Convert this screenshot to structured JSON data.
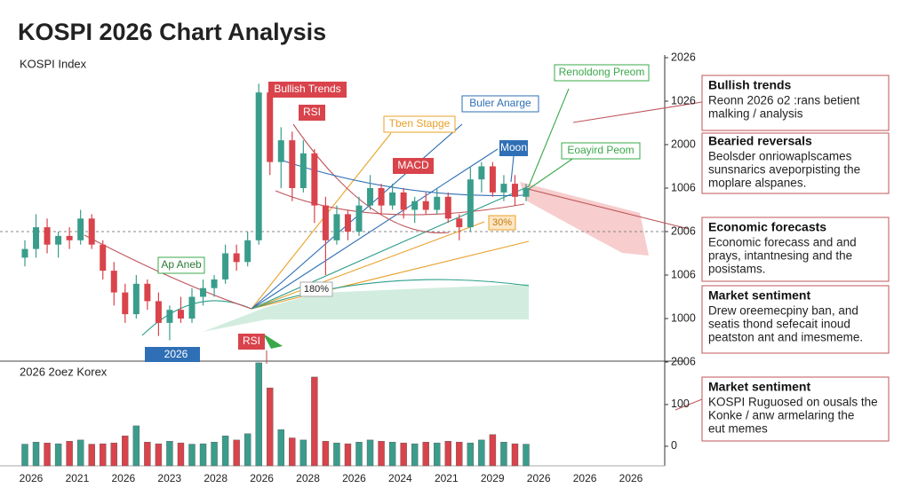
{
  "chart_data": {
    "type": "candlestick",
    "title": "KOSPI 2026 Chart Analysis",
    "price_label": "KOSPI Index",
    "volume_label": "2026 2oez Korex",
    "up_color": "#3a9d8c",
    "down_color": "#d9434b",
    "ylim": [
      0,
      7
    ],
    "yticks": [
      {
        "value": 0,
        "label": "2006"
      },
      {
        "value": 1,
        "label": "1000"
      },
      {
        "value": 2,
        "label": "1006"
      },
      {
        "value": 3,
        "label": "2006"
      },
      {
        "value": 4,
        "label": "1006"
      },
      {
        "value": 5,
        "label": "2000"
      },
      {
        "value": 6,
        "label": "1026"
      },
      {
        "value": 7,
        "label": "2026"
      }
    ],
    "volume_ylim": [
      -47,
      202
    ],
    "volume_yticks": [
      0,
      100
    ],
    "categories": [
      "2026",
      "2021",
      "2026",
      "2023",
      "2028",
      "2026",
      "2028",
      "2026",
      "2024",
      "2021",
      "2029",
      "2026",
      "2026",
      "2026"
    ],
    "candles": [
      [
        2.4,
        2.8,
        2.2,
        2.6
      ],
      [
        2.6,
        3.4,
        2.4,
        3.1
      ],
      [
        3.1,
        3.3,
        2.5,
        2.7
      ],
      [
        2.7,
        3.0,
        2.4,
        2.9
      ],
      [
        2.9,
        3.1,
        2.6,
        2.8
      ],
      [
        2.8,
        3.5,
        2.7,
        3.3
      ],
      [
        3.3,
        3.4,
        2.6,
        2.7
      ],
      [
        2.7,
        2.8,
        1.9,
        2.1
      ],
      [
        2.1,
        2.3,
        1.3,
        1.6
      ],
      [
        1.6,
        1.8,
        0.9,
        1.1
      ],
      [
        1.1,
        2.0,
        1.0,
        1.8
      ],
      [
        1.8,
        1.9,
        1.2,
        1.4
      ],
      [
        1.4,
        1.6,
        0.6,
        0.9
      ],
      [
        0.9,
        1.3,
        0.5,
        1.2
      ],
      [
        1.2,
        1.5,
        0.9,
        1.0
      ],
      [
        1.0,
        1.7,
        0.9,
        1.5
      ],
      [
        1.5,
        1.9,
        1.3,
        1.7
      ],
      [
        1.7,
        2.0,
        1.5,
        1.9
      ],
      [
        1.9,
        2.7,
        1.8,
        2.5
      ],
      [
        2.5,
        2.7,
        2.1,
        2.3
      ],
      [
        2.3,
        3.0,
        2.2,
        2.8
      ],
      [
        2.8,
        6.4,
        2.7,
        6.2
      ],
      [
        6.2,
        6.4,
        4.3,
        4.6
      ],
      [
        4.6,
        5.4,
        4.0,
        5.1
      ],
      [
        5.1,
        5.3,
        3.7,
        4.0
      ],
      [
        4.0,
        5.1,
        3.9,
        4.8
      ],
      [
        4.8,
        4.9,
        3.2,
        3.6
      ],
      [
        3.6,
        3.8,
        2.0,
        2.8
      ],
      [
        2.8,
        3.6,
        2.7,
        3.4
      ],
      [
        3.4,
        3.5,
        2.8,
        3.0
      ],
      [
        3.0,
        3.8,
        2.9,
        3.6
      ],
      [
        3.6,
        4.3,
        3.5,
        4.0
      ],
      [
        4.0,
        4.1,
        3.4,
        3.6
      ],
      [
        3.6,
        4.1,
        3.5,
        3.9
      ],
      [
        3.9,
        4.0,
        3.3,
        3.5
      ],
      [
        3.5,
        3.8,
        3.2,
        3.7
      ],
      [
        3.7,
        3.9,
        3.4,
        3.5
      ],
      [
        3.5,
        4.0,
        3.4,
        3.8
      ],
      [
        3.8,
        3.9,
        3.2,
        3.3
      ],
      [
        3.3,
        3.4,
        2.8,
        3.1
      ],
      [
        3.1,
        4.5,
        3.0,
        4.2
      ],
      [
        4.2,
        4.6,
        3.9,
        4.5
      ],
      [
        4.5,
        4.6,
        3.8,
        3.9
      ],
      [
        3.9,
        4.3,
        3.7,
        4.1
      ],
      [
        4.1,
        4.3,
        3.6,
        3.8
      ],
      [
        3.8,
        4.1,
        3.7,
        4.0
      ]
    ],
    "volume": [
      5,
      10,
      8,
      6,
      12,
      15,
      5,
      6,
      8,
      25,
      49,
      10,
      6,
      12,
      8,
      5,
      6,
      10,
      25,
      15,
      30,
      200,
      140,
      40,
      20,
      15,
      166,
      12,
      8,
      6,
      10,
      15,
      12,
      10,
      8,
      6,
      10,
      8,
      12,
      10,
      8,
      15,
      28,
      10,
      6,
      5
    ],
    "annotations": [
      "Bullish Trends",
      "RSI",
      "Tben Stapge",
      "Buler Anarge",
      "Renoldong Preom",
      "MACD",
      "Moon",
      "Eoayird Peom",
      "30%",
      "180%",
      "Ap Aneb",
      "2026",
      "RSI"
    ],
    "panels": [
      {
        "title": "Bullish trends",
        "lines": [
          "Reonn 2026 o2 :rans betient",
          "malking / analysis"
        ]
      },
      {
        "title": "Bearied reversals",
        "lines": [
          "Beolsder onriowaplscames",
          "sunsnarics aveporpisting the",
          "moplare alspanes."
        ]
      },
      {
        "title": "Economic forecasts",
        "lines": [
          "Economic forecass and and",
          "prays, intantnesing and the",
          "posistams."
        ]
      },
      {
        "title": "Market sentiment",
        "lines": [
          "Drew oreemecpiny ban, and",
          "seatis thond sefecait inoud",
          "peatston ant and imesmeme."
        ]
      },
      {
        "title": "Market sentiment",
        "lines": [
          "KOSPI Ruguosed on ousals the",
          "Konke / anw armelaring the",
          "eut memes"
        ]
      }
    ]
  }
}
